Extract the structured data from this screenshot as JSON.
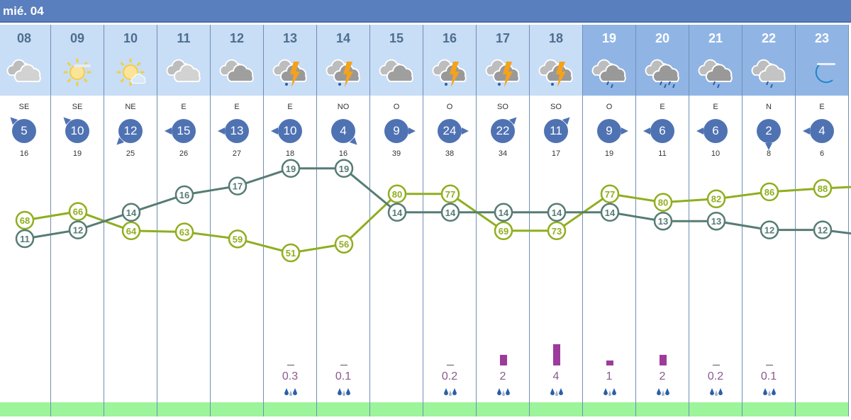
{
  "day_label": "mié. 04",
  "colors": {
    "header": "#5a7fbe",
    "day_bg": "#c8ddf6",
    "night_bg": "#90b5e5",
    "temperature": "#567c74",
    "humidity": "#8fae1f",
    "precip": "#9c3b9c",
    "band": "#9cf59a"
  },
  "hours": [
    {
      "hour": "08",
      "icon": "cloudy-icon",
      "night": false,
      "wind_dir": "SE",
      "wind": "5",
      "gust": "16",
      "temp": "11",
      "humidity": "68",
      "precip": "",
      "precip_value": 0
    },
    {
      "hour": "09",
      "icon": "sun-haze-icon",
      "night": false,
      "wind_dir": "SE",
      "wind": "10",
      "gust": "19",
      "temp": "12",
      "humidity": "66",
      "precip": "",
      "precip_value": 0
    },
    {
      "hour": "10",
      "icon": "sun-cloud-icon",
      "night": false,
      "wind_dir": "NE",
      "wind": "12",
      "gust": "25",
      "temp": "14",
      "humidity": "64",
      "precip": "",
      "precip_value": 0
    },
    {
      "hour": "11",
      "icon": "cloudy-icon",
      "night": false,
      "wind_dir": "E",
      "wind": "15",
      "gust": "26",
      "temp": "16",
      "humidity": "63",
      "precip": "",
      "precip_value": 0
    },
    {
      "hour": "12",
      "icon": "overcast-icon",
      "night": false,
      "wind_dir": "E",
      "wind": "13",
      "gust": "27",
      "temp": "17",
      "humidity": "59",
      "precip": "",
      "precip_value": 0
    },
    {
      "hour": "13",
      "icon": "thunderstorm-icon",
      "night": false,
      "wind_dir": "E",
      "wind": "10",
      "gust": "18",
      "temp": "19",
      "humidity": "51",
      "precip": "0.3",
      "precip_value": 0.3
    },
    {
      "hour": "14",
      "icon": "thunderstorm-icon",
      "night": false,
      "wind_dir": "NO",
      "wind": "4",
      "gust": "16",
      "temp": "19",
      "humidity": "56",
      "precip": "0.1",
      "precip_value": 0.1
    },
    {
      "hour": "15",
      "icon": "overcast-icon",
      "night": false,
      "wind_dir": "O",
      "wind": "9",
      "gust": "39",
      "temp": "14",
      "humidity": "80",
      "precip": "",
      "precip_value": 0
    },
    {
      "hour": "16",
      "icon": "thunderstorm-icon",
      "night": false,
      "wind_dir": "O",
      "wind": "24",
      "gust": "38",
      "temp": "14",
      "humidity": "77",
      "precip": "0.2",
      "precip_value": 0.2
    },
    {
      "hour": "17",
      "icon": "thunderstorm-icon",
      "night": false,
      "wind_dir": "SO",
      "wind": "22",
      "gust": "34",
      "temp": "14",
      "humidity": "69",
      "precip": "2",
      "precip_value": 2
    },
    {
      "hour": "18",
      "icon": "thunderstorm-icon",
      "night": false,
      "wind_dir": "SO",
      "wind": "11",
      "gust": "17",
      "temp": "14",
      "humidity": "73",
      "precip": "4",
      "precip_value": 4
    },
    {
      "hour": "19",
      "icon": "rain-icon",
      "night": true,
      "wind_dir": "O",
      "wind": "9",
      "gust": "19",
      "temp": "14",
      "humidity": "77",
      "precip": "1",
      "precip_value": 1
    },
    {
      "hour": "20",
      "icon": "heavy-rain-icon",
      "night": true,
      "wind_dir": "E",
      "wind": "6",
      "gust": "11",
      "temp": "13",
      "humidity": "80",
      "precip": "2",
      "precip_value": 2
    },
    {
      "hour": "21",
      "icon": "rain-icon",
      "night": true,
      "wind_dir": "E",
      "wind": "6",
      "gust": "10",
      "temp": "13",
      "humidity": "82",
      "precip": "0.2",
      "precip_value": 0.2
    },
    {
      "hour": "22",
      "icon": "light-rain-icon",
      "night": true,
      "wind_dir": "N",
      "wind": "2",
      "gust": "8",
      "temp": "12",
      "humidity": "86",
      "precip": "0.1",
      "precip_value": 0.1
    },
    {
      "hour": "23",
      "icon": "moon-haze-icon",
      "night": true,
      "wind_dir": "E",
      "wind": "4",
      "gust": "6",
      "temp": "12",
      "humidity": "88",
      "precip": "",
      "precip_value": 0
    }
  ]
}
